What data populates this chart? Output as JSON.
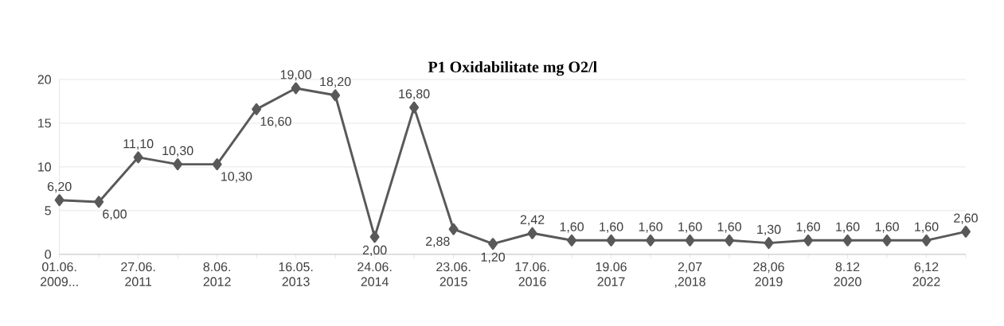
{
  "chart_data": {
    "type": "line",
    "title": "P1 Oxidabilitate mg O2/l",
    "categories": [
      "01.06. 2009...",
      null,
      "27.06. 2011",
      null,
      "8.06. 2012",
      null,
      "16.05. 2013",
      null,
      "24.06. 2014",
      null,
      "23.06. 2015",
      null,
      "17.06. 2016",
      null,
      "19.06 2017",
      null,
      "2,07 ,2018",
      null,
      "28,06 2019",
      null,
      "8.12 2020",
      null,
      "6,12 2022",
      null
    ],
    "series": [
      {
        "color": "#595959",
        "values": [
          6.2,
          6.0,
          11.1,
          10.3,
          10.3,
          16.6,
          19.0,
          18.2,
          2.0,
          16.8,
          2.88,
          1.2,
          2.42,
          1.6,
          1.6,
          1.6,
          1.6,
          1.6,
          1.3,
          1.6,
          1.6,
          1.6,
          1.6,
          2.6
        ],
        "value_labels": [
          "6,20",
          "6,00",
          "11,10",
          "10,30",
          "10,30",
          "16,60",
          "19,00",
          "18,20",
          "2,00",
          "16,80",
          "2,88",
          "1,20",
          "2,42",
          "1,60",
          "1,60",
          "1,60",
          "1,60",
          "1,60",
          "1,30",
          "1,60",
          "1,60",
          "1,60",
          "1,60",
          "2,60"
        ]
      }
    ],
    "ylim": [
      0,
      20
    ],
    "yticks": [
      0,
      5,
      10,
      15,
      20
    ],
    "grid": "y",
    "marker": "diamond",
    "line_style": "solid"
  }
}
